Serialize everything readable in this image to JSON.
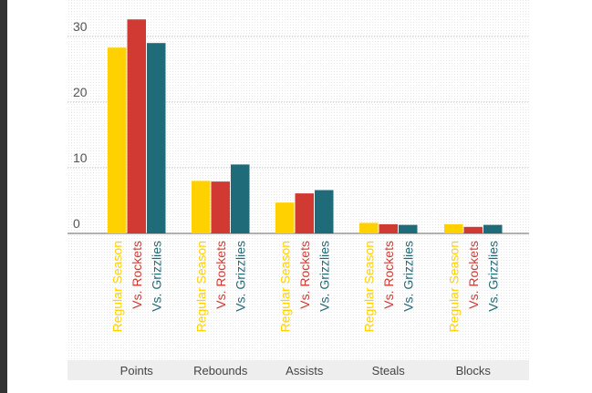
{
  "colors": {
    "regular_season": "#FFD100",
    "vs_rockets": "#D13A32",
    "vs_grizzlies": "#1F6B7A",
    "axis_text": "#555555",
    "gridline": "#bbbbbb",
    "baseline": "#999999",
    "category_band": "#eeeeee"
  },
  "chart_data": {
    "type": "bar",
    "categories": [
      "Points",
      "Rebounds",
      "Assists",
      "Steals",
      "Blocks"
    ],
    "series": [
      {
        "name": "Regular Season",
        "values": [
          28.3,
          8.0,
          4.7,
          1.6,
          1.4
        ]
      },
      {
        "name": "Vs. Rockets",
        "values": [
          32.6,
          7.9,
          6.1,
          1.4,
          1.0
        ]
      },
      {
        "name": "Vs. Grizzlies",
        "values": [
          29.0,
          10.5,
          6.6,
          1.3,
          1.3
        ]
      }
    ],
    "yticks": [
      0,
      10,
      20,
      30
    ],
    "ylim": [
      0,
      33
    ],
    "grid": true,
    "title": "",
    "xlabel": "",
    "ylabel": ""
  }
}
